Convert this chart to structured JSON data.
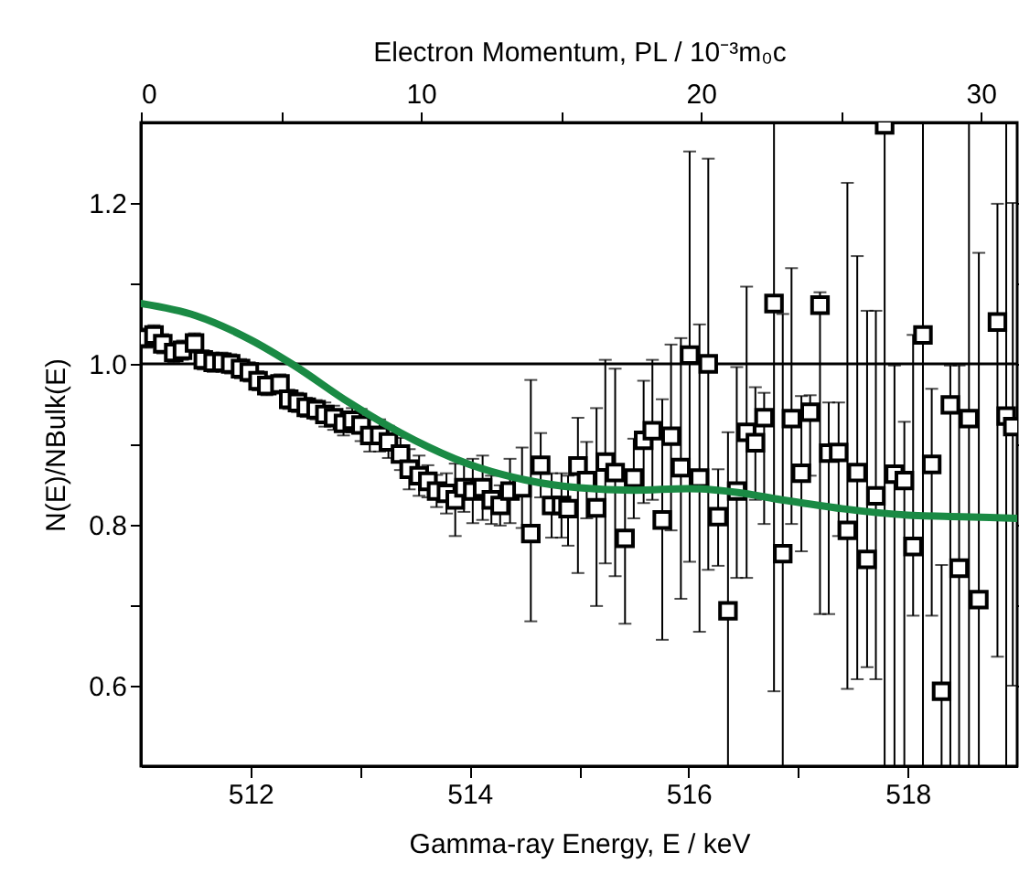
{
  "chart_data": {
    "type": "scatter",
    "xlabel": "Gamma-ray Energy, E / keV",
    "ylabel": "N(E)/NBulk(E)",
    "x2label": "Electron Momentum, PL / 10⁻³m₀c",
    "xlim": [
      511,
      519
    ],
    "xticks": [
      512,
      {
        "value": 513,
        "label": null
      },
      514,
      {
        "value": 515,
        "label": null
      },
      516,
      {
        "value": 517,
        "label": null
      },
      518
    ],
    "x2lim": [
      0,
      31.3
    ],
    "x2ticks": [
      0,
      {
        "value": 5,
        "label": null
      },
      10,
      {
        "value": 15,
        "label": null
      },
      20,
      {
        "value": 25,
        "label": null
      },
      30
    ],
    "ylim": [
      0.5,
      1.3
    ],
    "yticks": [
      {
        "value": 0.6,
        "label": "0.6"
      },
      {
        "value": 0.7,
        "label": null
      },
      {
        "value": 0.8,
        "label": "0.8"
      },
      {
        "value": 0.9,
        "label": null
      },
      {
        "value": 1.0,
        "label": "1.0"
      },
      {
        "value": 1.1,
        "label": null
      },
      {
        "value": 1.2,
        "label": "1.2"
      }
    ],
    "grid": false,
    "ref_lines": [
      {
        "axis": "y",
        "value": 1.0,
        "color": "#000000"
      }
    ],
    "series": [
      {
        "type": "scatter",
        "marker": "square",
        "color": "#000000",
        "x": [
          511.05,
          511.12,
          511.2,
          511.3,
          511.38,
          511.49,
          511.57,
          511.66,
          511.74,
          511.82,
          511.91,
          511.99,
          512.07,
          512.15,
          512.27,
          512.35,
          512.43,
          512.51,
          512.6,
          512.68,
          512.76,
          512.85,
          512.93,
          513.01,
          513.09,
          513.18,
          513.26,
          513.37,
          513.45,
          513.54,
          513.62,
          513.7,
          513.79,
          513.87,
          513.95,
          514.03,
          514.12,
          514.2,
          514.28,
          514.37,
          514.48,
          514.56,
          514.65,
          514.75,
          514.84,
          514.9,
          514.99,
          515.07,
          515.16,
          515.24,
          515.33,
          515.42,
          515.5,
          515.59,
          515.67,
          515.76,
          515.84,
          515.93,
          516.01,
          516.1,
          516.18,
          516.27,
          516.36,
          516.44,
          516.53,
          516.61,
          516.69,
          516.78,
          516.86,
          516.94,
          517.03,
          517.11,
          517.2,
          517.28,
          517.37,
          517.45,
          517.54,
          517.63,
          517.71,
          517.79,
          517.88,
          517.97,
          518.05,
          518.14,
          518.22,
          518.31,
          518.39,
          518.47,
          518.56,
          518.65,
          518.82,
          518.9,
          518.96
        ],
        "values": [
          1.032,
          1.036,
          1.025,
          1.014,
          1.017,
          1.026,
          1.005,
          1.002,
          1.002,
          1.0,
          0.994,
          0.99,
          0.979,
          0.973,
          0.975,
          0.956,
          0.952,
          0.946,
          0.943,
          0.937,
          0.933,
          0.926,
          0.93,
          0.924,
          0.911,
          0.911,
          0.903,
          0.888,
          0.869,
          0.861,
          0.854,
          0.842,
          0.839,
          0.831,
          0.846,
          0.842,
          0.846,
          0.831,
          0.824,
          0.842,
          0.846,
          0.789,
          0.874,
          0.824,
          0.824,
          0.82,
          0.873,
          0.855,
          0.821,
          0.878,
          0.865,
          0.783,
          0.858,
          0.905,
          0.917,
          0.806,
          0.91,
          0.871,
          1.011,
          0.858,
          1.0,
          0.81,
          0.693,
          0.842,
          0.915,
          0.902,
          0.933,
          1.075,
          0.764,
          0.932,
          0.864,
          0.94,
          1.073,
          0.889,
          0.89,
          0.793,
          0.865,
          0.757,
          0.836,
          1.297,
          0.863,
          0.855,
          0.773,
          1.036,
          0.875,
          0.593,
          0.949,
          0.746,
          0.932,
          0.707,
          1.052,
          0.935,
          0.922
        ],
        "errors": [
          0.012,
          0.012,
          0.012,
          0.012,
          0.012,
          0.012,
          0.012,
          0.012,
          0.012,
          0.012,
          0.012,
          0.012,
          0.012,
          0.012,
          0.012,
          0.012,
          0.012,
          0.012,
          0.012,
          0.015,
          0.015,
          0.015,
          0.015,
          0.02,
          0.02,
          0.02,
          0.02,
          0.02,
          0.025,
          0.025,
          0.02,
          0.02,
          0.025,
          0.045,
          0.03,
          0.04,
          0.04,
          0.03,
          0.025,
          0.04,
          0.05,
          [
            0.68,
            0.98
          ],
          0.04,
          0.04,
          0.04,
          [
            0.774,
            0.861
          ],
          [
            0.74,
            0.933
          ],
          [
            0.808,
            0.903
          ],
          [
            0.699,
            0.945
          ],
          [
            0.752,
            1.005
          ],
          [
            0.736,
            0.994
          ],
          [
            0.677,
            0.865
          ],
          [
            0.808,
            0.907
          ],
          [
            0.827,
            0.979
          ],
          [
            0.831,
            1.005
          ],
          [
            0.657,
            0.956
          ],
          [
            0.793,
            1.024
          ],
          [
            0.708,
            1.032
          ],
          [
            0.754,
            1.264
          ],
          [
            0.667,
            1.049
          ],
          [
            0.744,
            1.255
          ],
          [
            0.749,
            0.869
          ],
          [
            0.5,
            0.915
          ],
          [
            0.734,
            0.996
          ],
          [
            0.734,
            1.096
          ],
          [
            0.831,
            0.971
          ],
          [
            0.801,
            0.964
          ],
          [
            0.593,
            1.3
          ],
          [
            0.5,
            1.062
          ],
          [
            0.801,
            1.119
          ],
          [
            0.767,
            0.96
          ],
          [
            0.861,
            0.961
          ],
          [
            0.689,
            1.089
          ],
          [
            0.689,
            0.952
          ],
          [
            0.786,
            0.952
          ],
          [
            0.596,
            1.225
          ],
          [
            0.608,
            1.134
          ],
          [
            0.623,
            1.066
          ],
          [
            0.608,
            1.066
          ],
          [
            0.5,
            1.3
          ],
          [
            0.5,
            0.998
          ],
          [
            0.5,
            0.928
          ],
          [
            0.687,
            1.036
          ],
          [
            0.5,
            1.3
          ],
          [
            0.687,
            0.969
          ],
          [
            0.5,
            0.75
          ],
          [
            0.5,
            0.998
          ],
          [
            0.5,
            0.998
          ],
          [
            0.5,
            1.3
          ],
          [
            0.5,
            1.138
          ],
          [
            0.636,
            1.199
          ],
          [
            0.5,
            1.3
          ],
          [
            0.6,
            1.2
          ]
        ]
      },
      {
        "type": "line",
        "color": "#1a8a44",
        "line_style": "solid",
        "x": [
          511.0,
          511.5,
          512.0,
          512.4,
          512.9,
          513.5,
          514.0,
          514.5,
          515.0,
          515.5,
          516.0,
          516.45,
          516.85,
          517.4,
          518.0,
          518.5,
          519.0
        ],
        "values": [
          1.075,
          1.06,
          1.03,
          0.998,
          0.952,
          0.905,
          0.875,
          0.856,
          0.846,
          0.843,
          0.845,
          0.84,
          0.831,
          0.82,
          0.812,
          0.81,
          0.808
        ]
      }
    ]
  }
}
